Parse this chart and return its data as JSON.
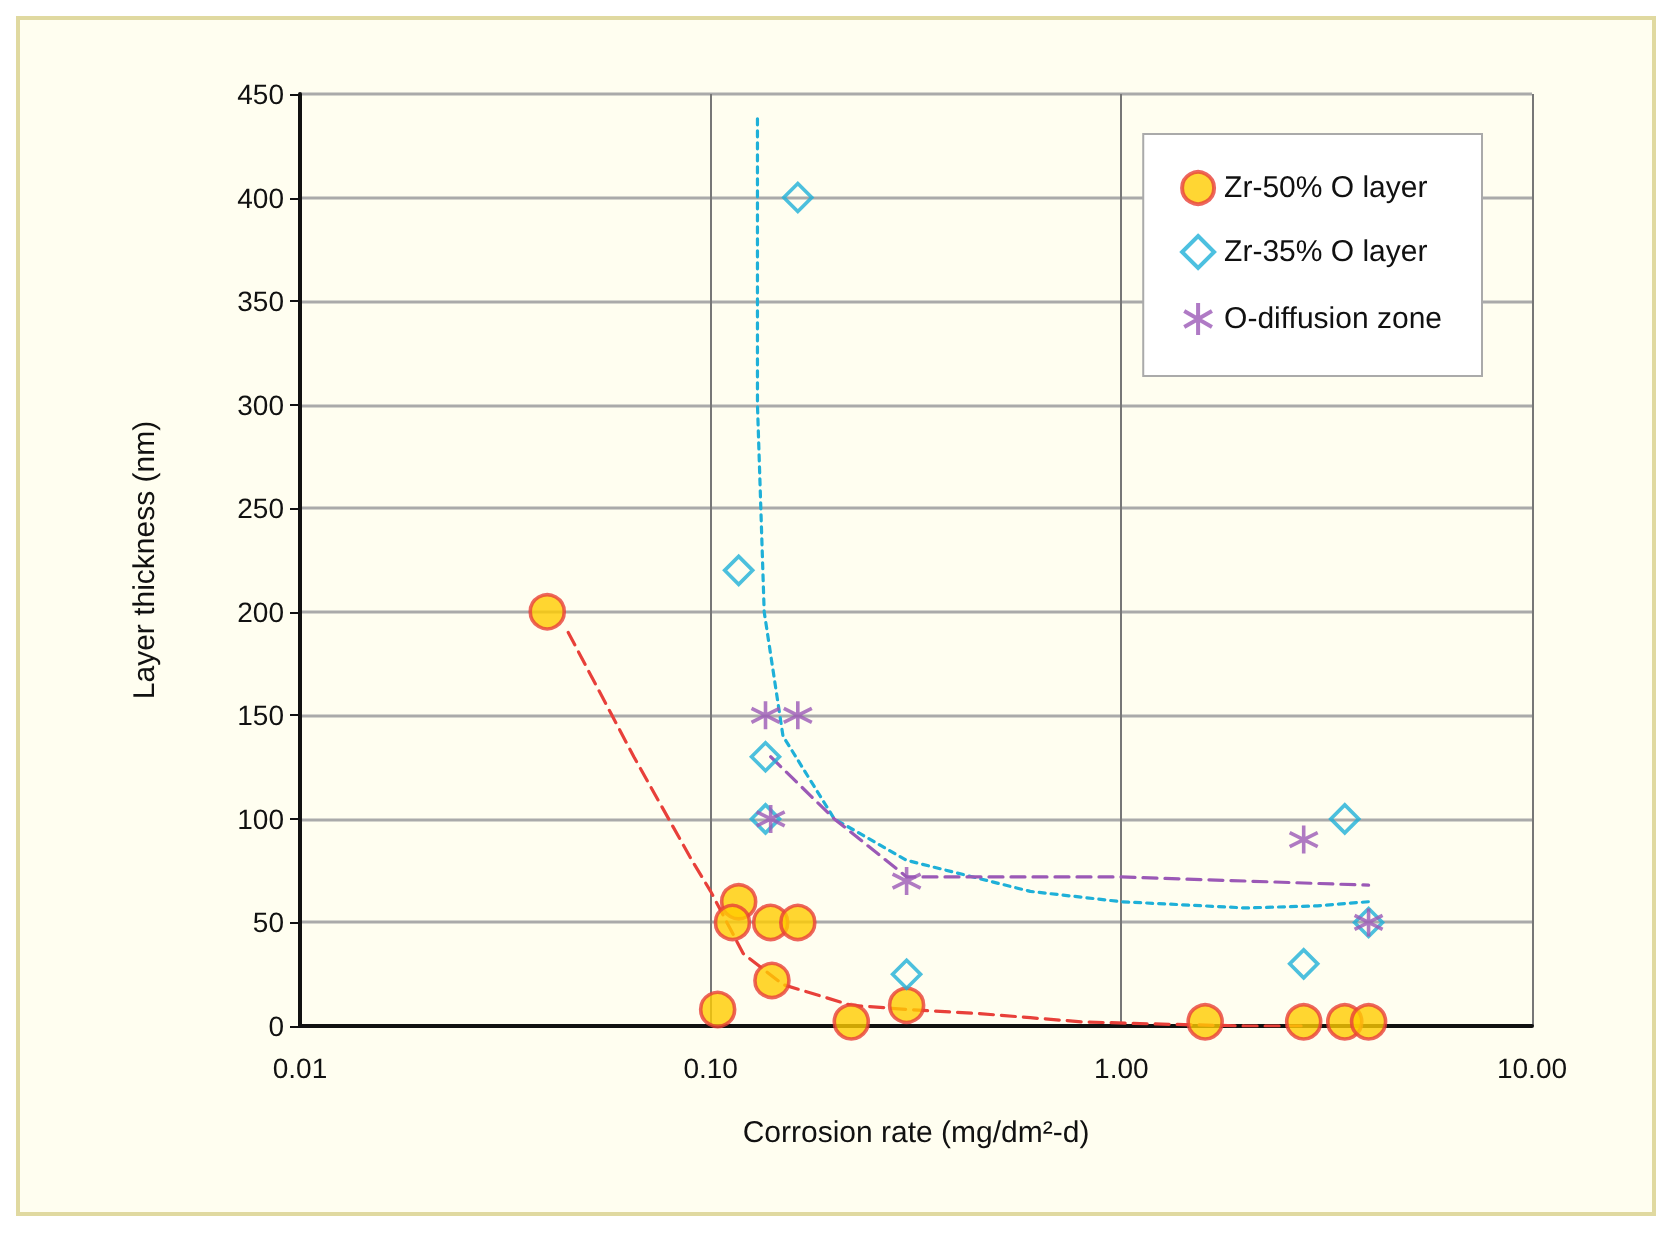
{
  "chart_data": {
    "type": "scatter",
    "xlabel": "Corrosion rate (mg/dm²-d)",
    "ylabel": "Layer thickness (nm)",
    "log": "x",
    "xlim": [
      0.01,
      10
    ],
    "xticks": [
      {
        "value": 0.01,
        "label": "0.01"
      },
      {
        "value": 0.1,
        "label": "0.10"
      },
      {
        "value": 1,
        "label": "1.00"
      },
      {
        "value": 10,
        "label": "10.00"
      }
    ],
    "ylim": [
      0,
      450
    ],
    "yticks": [
      0,
      50,
      100,
      150,
      200,
      250,
      300,
      350,
      400,
      450
    ],
    "grid": true,
    "legend": "top right",
    "series": [
      {
        "name": "Zr-50% O layer",
        "color": "#ffcc00",
        "marker": "circle",
        "x": [
          0.04,
          0.104,
          0.117,
          0.113,
          0.14,
          0.163,
          0.141,
          0.22,
          0.3,
          1.6,
          2.78,
          3.5,
          4.0
        ],
        "values": [
          200,
          8,
          60,
          50,
          50,
          50,
          22,
          2,
          10,
          2,
          2,
          2,
          2
        ]
      },
      {
        "name": "Zr-35% O layer",
        "color": "#1fb0d8",
        "marker": "diamond",
        "x": [
          0.163,
          0.117,
          0.136,
          0.136,
          0.3,
          2.78,
          3.5,
          4.0
        ],
        "values": [
          400,
          220,
          130,
          100,
          25,
          30,
          100,
          50
        ]
      },
      {
        "name": "O-diffusion zone",
        "color": "#9b59b6",
        "marker": "cross",
        "x": [
          0.136,
          0.163,
          0.14,
          0.3,
          2.78,
          4.0
        ],
        "values": [
          150,
          150,
          100,
          70,
          90,
          50
        ]
      },
      {
        "type": "line",
        "color": "#e8403a",
        "line_style": "dashed",
        "marker": "none",
        "x": [
          0.045,
          0.065,
          0.09,
          0.1,
          0.12,
          0.15,
          0.22,
          0.3,
          0.45,
          0.6,
          0.8,
          1.2,
          2.0,
          2.78
        ],
        "values": [
          190,
          130,
          80,
          65,
          35,
          20,
          10,
          8,
          6,
          4,
          2,
          1,
          0,
          0
        ]
      },
      {
        "type": "line",
        "color": "#1fb0d8",
        "line_style": "dotted",
        "marker": "none",
        "x": [
          0.13,
          0.13,
          0.135,
          0.15,
          0.2,
          0.3,
          0.6,
          1,
          2,
          3,
          4
        ],
        "values": [
          438,
          300,
          200,
          140,
          100,
          80,
          65,
          60,
          57,
          58,
          60
        ]
      },
      {
        "type": "line",
        "color": "#9b59b6",
        "line_style": "dashed",
        "marker": "none",
        "x": [
          0.14,
          0.2,
          0.3,
          1,
          4
        ],
        "values": [
          130,
          100,
          72,
          72,
          68
        ]
      }
    ]
  }
}
